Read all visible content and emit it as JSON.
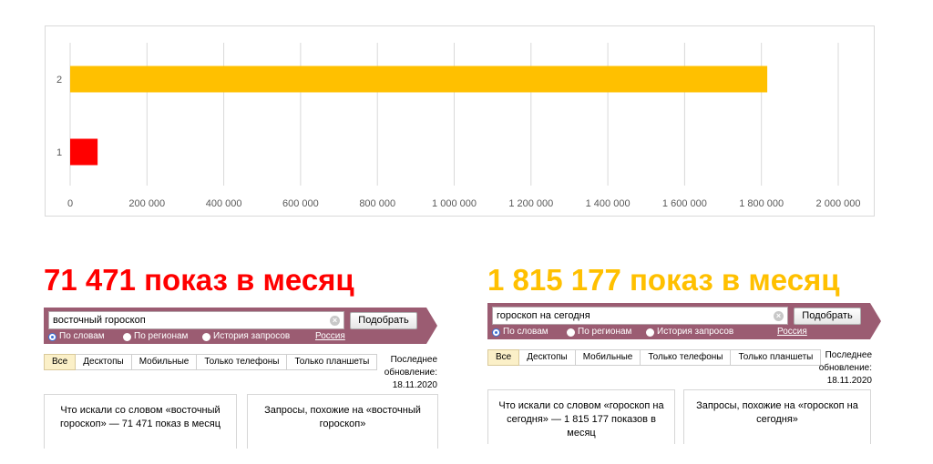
{
  "chart_data": {
    "type": "bar",
    "orientation": "horizontal",
    "categories": [
      "1",
      "2"
    ],
    "values": [
      71471,
      1815177
    ],
    "bar_colors": [
      "#ff0000",
      "#ffc000"
    ],
    "xlim": [
      0,
      2000000
    ],
    "x_ticks": [
      "0",
      "200 000",
      "400 000",
      "600 000",
      "800 000",
      "1 000 000",
      "1 200 000",
      "1 400 000",
      "1 600 000",
      "1 800 000",
      "2 000 000"
    ],
    "title": "",
    "xlabel": "",
    "ylabel": "",
    "grid": true,
    "legend": "none"
  },
  "headlines": {
    "left": {
      "text": "71 471 показ в месяц",
      "color": "#ff0000"
    },
    "right": {
      "text": "1 815 177 показ в месяц",
      "color": "#ffc000"
    }
  },
  "panels": {
    "left": {
      "query": "восточный гороскоп",
      "search_button": "Подобрать",
      "radios": [
        "По словам",
        "По регионам",
        "История запросов"
      ],
      "region": "Россия",
      "tabs": [
        "Все",
        "Десктопы",
        "Мобильные",
        "Только телефоны",
        "Только планшеты"
      ],
      "updated_line1": "Последнее",
      "updated_line2": "обновление: 18.11.2020",
      "left_column": "Что искали со словом «восточный гороскоп» — 71 471 показ в месяц",
      "right_column": "Запросы, похожие на «восточный гороскоп»"
    },
    "right": {
      "query": "гороскоп на сегодня",
      "search_button": "Подобрать",
      "radios": [
        "По словам",
        "По регионам",
        "История запросов"
      ],
      "region": "Россия",
      "tabs": [
        "Все",
        "Десктопы",
        "Мобильные",
        "Только телефоны",
        "Только планшеты"
      ],
      "updated_line1": "Последнее",
      "updated_line2": "обновление: 18.11.2020",
      "left_column": "Что искали со словом «гороскоп на сегодня» — 1 815 177 показов в месяц",
      "right_column": "Запросы, похожие на «гороскоп на сегодня»"
    }
  },
  "colors": {
    "bar_accent": "#9b5c72",
    "active_tab": "#fbf0c8"
  }
}
